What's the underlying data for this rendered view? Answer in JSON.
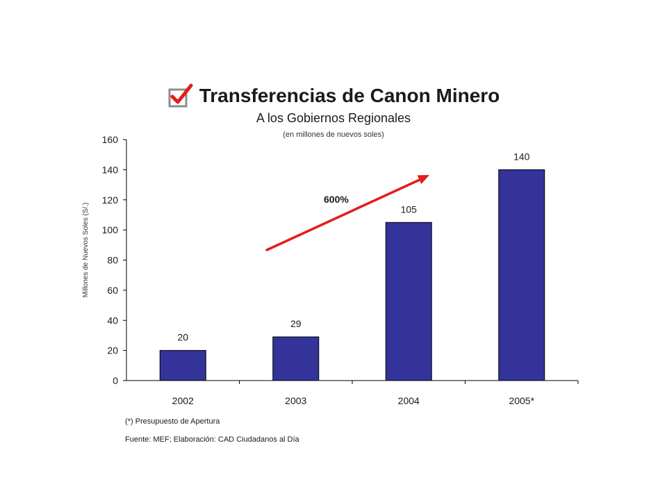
{
  "title": "Transferencias de Canon Minero",
  "subtitle": "A los Gobiernos Regionales",
  "units_note": "(en millones de nuevos soles)",
  "growth_label": "600%",
  "footnote": "(*) Presupuesto de Apertura",
  "source": "Fuente: MEF; Elaboración: CAD Ciudadanos al Día",
  "colors": {
    "bar": "#333399",
    "arrow": "#e31c1c",
    "check_box": "#8c8c8c",
    "check_mark": "#e31c1c"
  },
  "chart_data": {
    "type": "bar",
    "categories": [
      "2002",
      "2003",
      "2004",
      "2005*"
    ],
    "values": [
      20,
      29,
      105,
      140
    ],
    "data_labels": [
      "20",
      "29",
      "105",
      "140"
    ],
    "ylabel": "Millones de Nuevos Soles (S/.)",
    "xlabel": "",
    "ylim": [
      0,
      160
    ],
    "yticks": [
      0,
      20,
      40,
      60,
      80,
      100,
      120,
      140,
      160
    ],
    "grid": false,
    "legend": "none"
  }
}
